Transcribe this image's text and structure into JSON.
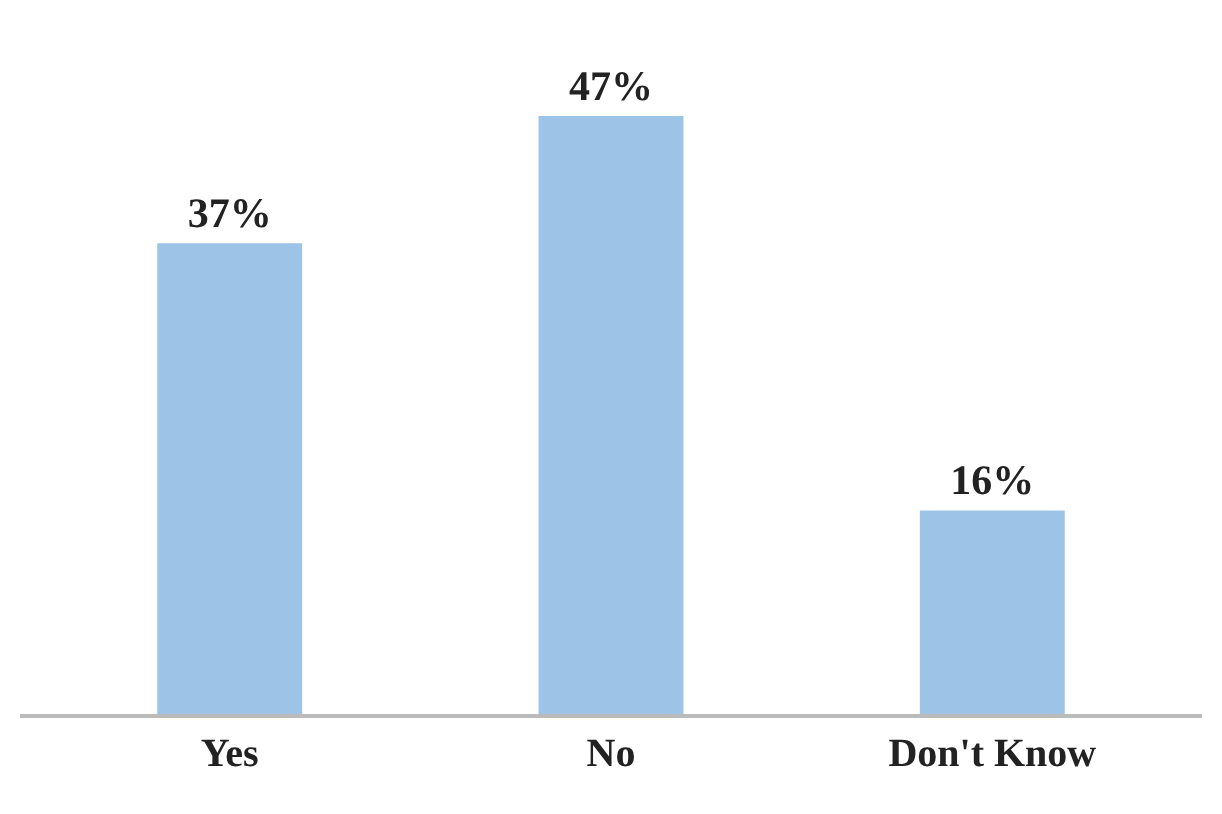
{
  "chart_data": {
    "type": "bar",
    "categories": [
      "Yes",
      "No",
      "Don't Know"
    ],
    "values": [
      37,
      47,
      16
    ],
    "value_labels": [
      "37%",
      "47%",
      "16%"
    ],
    "color": "#9dc3e6"
  }
}
